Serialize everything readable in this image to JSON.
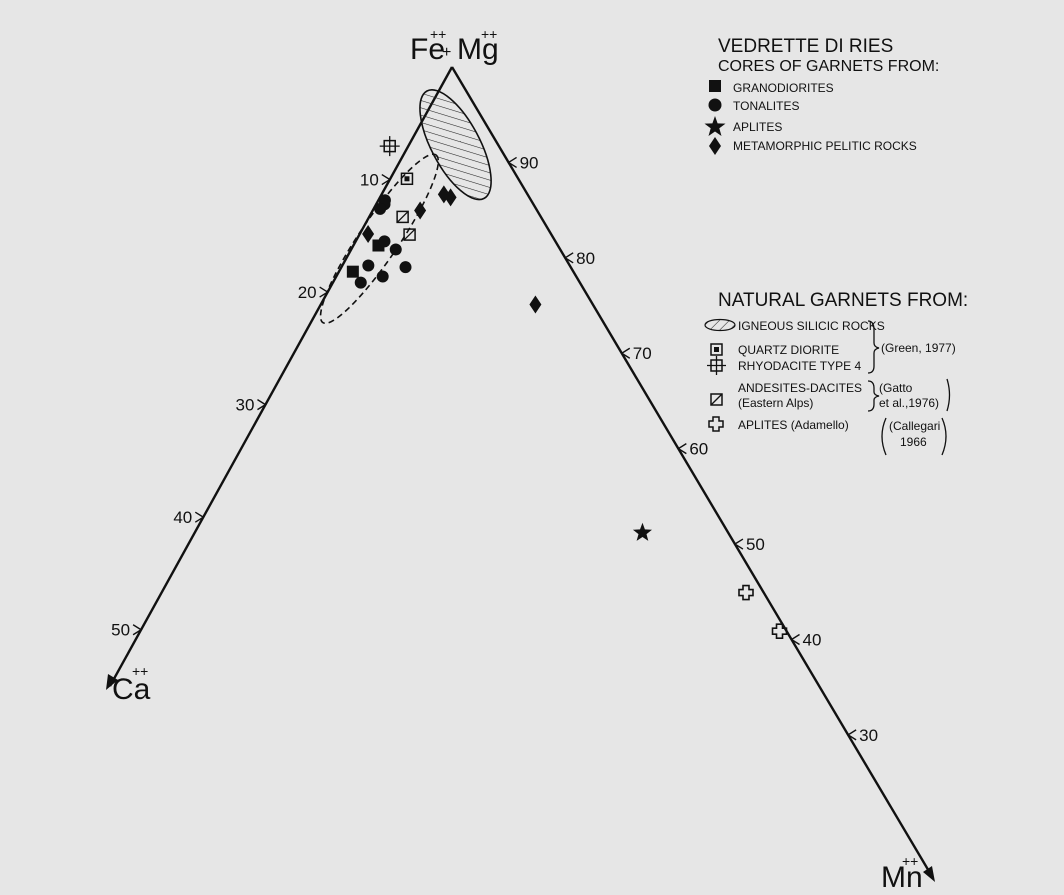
{
  "chart_data": {
    "type": "scatter",
    "subtype": "ternary",
    "vertices": {
      "top": {
        "label": "Fe",
        "label2": "Mg",
        "sup": "++"
      },
      "left": {
        "label": "Ca",
        "sup": "++"
      },
      "right": {
        "label": "Mn",
        "sup": "++"
      }
    },
    "ca_ticks": [
      "10",
      "20",
      "30",
      "40",
      "50"
    ],
    "femg_ticks": [
      "90",
      "80",
      "70",
      "60",
      "50",
      "40",
      "30"
    ],
    "legend_vedrette": {
      "title": "VEDRETTE  DI  RIES",
      "subtitle": "CORES  OF  GARNETS  FROM:",
      "items": [
        {
          "symbol": "square",
          "label": "GRANODIORITES"
        },
        {
          "symbol": "circle",
          "label": "TONALITES"
        },
        {
          "symbol": "star",
          "label": "APLITES"
        },
        {
          "symbol": "diamond",
          "label": "METAMORPHIC  PELITIC  ROCKS"
        }
      ]
    },
    "legend_natural": {
      "title": "NATURAL  GARNETS  FROM:",
      "items": [
        {
          "symbol": "hatched-ellipse",
          "label": "IGNEOUS  SILICIC  ROCKS"
        },
        {
          "symbol": "framed-square",
          "label": "QUARTZ  DIORITE"
        },
        {
          "symbol": "rayed-square",
          "label": "RHYODACITE  TYPE  4"
        },
        {
          "symbol": "slashed-square",
          "label": "ANDESITES-DACITES",
          "label2": "(Eastern  Alps)"
        },
        {
          "symbol": "cross",
          "label": "APLITES  (Adamello)"
        }
      ],
      "refs": [
        {
          "lines": [
            "(Green, 1977)"
          ]
        },
        {
          "lines": [
            "(Gatto",
            "et al.,1976)"
          ]
        },
        {
          "lines": [
            "(Callegari",
            "1966"
          ]
        }
      ]
    },
    "series": [
      {
        "name": "GRANODIORITES",
        "symbol": "square",
        "points": [
          {
            "ca": 25.3,
            "femg": 72.0
          },
          {
            "ca": 31.1,
            "femg": 67.4
          }
        ]
      },
      {
        "name": "TONALITES",
        "symbol": "circle",
        "points": [
          {
            "ca": 20.6,
            "femg": 78.7
          },
          {
            "ca": 21.0,
            "femg": 78.1
          },
          {
            "ca": 22.0,
            "femg": 77.3
          },
          {
            "ca": 24.1,
            "femg": 72.8
          },
          {
            "ca": 23.2,
            "femg": 72.0
          },
          {
            "ca": 23.3,
            "femg": 69.8
          },
          {
            "ca": 28.4,
            "femg": 68.8
          },
          {
            "ca": 27.3,
            "femg": 67.7
          },
          {
            "ca": 30.9,
            "femg": 66.1
          }
        ]
      },
      {
        "name": "APLITES",
        "symbol": "star",
        "points": [
          {
            "ca": 12.1,
            "femg": 39.7
          }
        ]
      },
      {
        "name": "METAMORPHIC  PELITIC  ROCKS",
        "symbol": "diamond",
        "points": [
          {
            "ca": 25.8,
            "femg": 73.3
          },
          {
            "ca": 16.5,
            "femg": 78.4
          },
          {
            "ca": 11.8,
            "femg": 81.5
          },
          {
            "ca": 11.1,
            "femg": 81.3
          },
          {
            "ca": 8.1,
            "femg": 68.8
          }
        ]
      },
      {
        "name": "QUARTZ  DIORITE",
        "symbol": "framed-square",
        "points": [
          {
            "ca": 15.7,
            "femg": 82.5
          }
        ]
      },
      {
        "name": "RHYODACITE  TYPE  4",
        "symbol": "rayed-square",
        "points": [
          {
            "ca": 15.4,
            "femg": 86.6
          }
        ]
      },
      {
        "name": "ANDESITES-DACITES (Eastern Alps)",
        "symbol": "slashed-square",
        "points": [
          {
            "ca": 19.5,
            "femg": 76.9
          },
          {
            "ca": 20.0,
            "femg": 74.6
          }
        ]
      },
      {
        "name": "APLITES  (Adamello)",
        "symbol": "cross",
        "points": [
          {
            "ca": 2.5,
            "femg": 34.6
          },
          {
            "ca": 1.0,
            "femg": 30.2
          }
        ]
      }
    ],
    "regions": [
      {
        "name": "IGNEOUS  SILICIC  ROCKS",
        "style": "hatched-ellipse",
        "center": {
          "ca": 6.0,
          "femg": 89.0
        },
        "rx": 8.6,
        "ry": 3.4,
        "rotate_deg": 62
      },
      {
        "name": "Vedrette di Ries cores",
        "style": "dashed-ellipse",
        "center": {
          "ca": 24.6,
          "femg": 73.0
        },
        "rx": 14.3,
        "ry": 2.8,
        "rotate_deg": -56
      }
    ]
  }
}
